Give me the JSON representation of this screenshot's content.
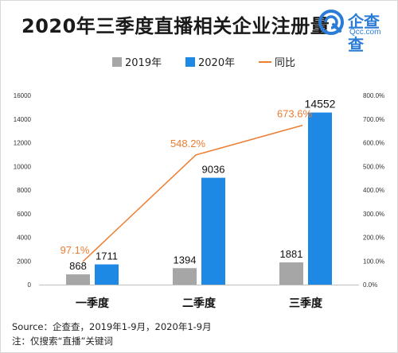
{
  "header": {
    "title": "2020年三季度直播相关企业注册量"
  },
  "logo": {
    "name": "企查查",
    "url_text": "Qcc.com",
    "color": "#2a7cd6"
  },
  "footer": {
    "source": "Source：企查查，2019年1-9月，2020年1-9月",
    "note": "注：仅搜索“直播”关键词"
  },
  "chart_data": {
    "type": "bar",
    "categories": [
      "一季度",
      "二季度",
      "三季度"
    ],
    "series": [
      {
        "name": "2019年",
        "type": "bar",
        "color": "#a6a6a6",
        "values": [
          868,
          1394,
          1881
        ]
      },
      {
        "name": "2020年",
        "type": "bar",
        "color": "#1e88e5",
        "values": [
          1711,
          9036,
          14552
        ]
      },
      {
        "name": "同比",
        "type": "line",
        "axis": "right",
        "color": "#ed7d31",
        "values": [
          97.1,
          548.2,
          673.6
        ],
        "labels": [
          "97.1%",
          "548.2%",
          "673.6%"
        ]
      }
    ],
    "y_left": {
      "min": 0,
      "max": 16000,
      "ticks": [
        "0",
        "2000",
        "4000",
        "6000",
        "8000",
        "10000",
        "12000",
        "14000",
        "16000"
      ]
    },
    "y_right": {
      "min": 0,
      "max": 800,
      "ticks": [
        "0.0%",
        "100.0%",
        "200.0%",
        "300.0%",
        "400.0%",
        "500.0%",
        "600.0%",
        "700.0%",
        "800.0%"
      ]
    },
    "legend": "top-center",
    "grid": false
  }
}
